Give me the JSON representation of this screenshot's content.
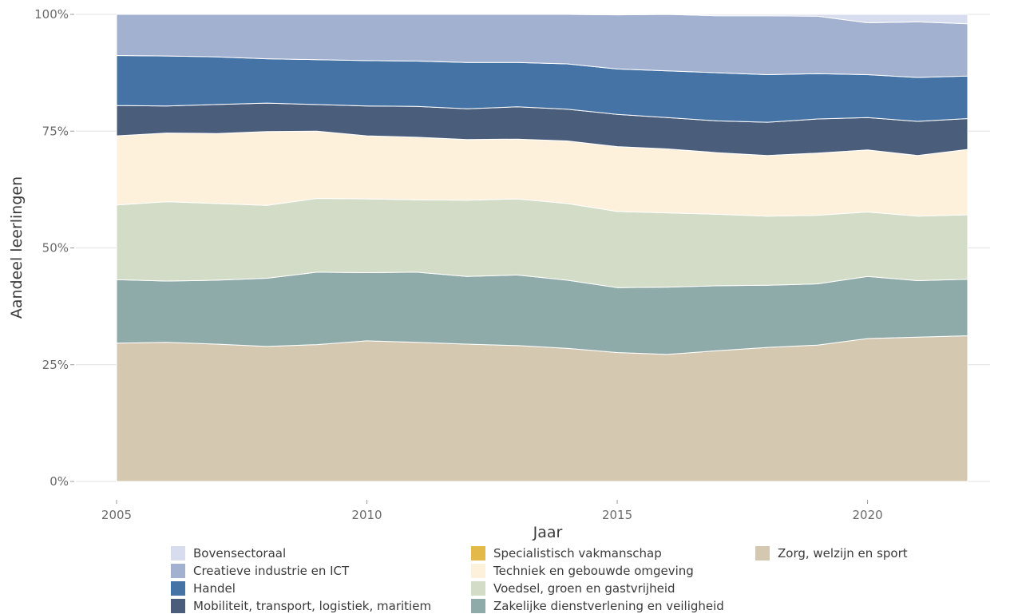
{
  "chart_data": {
    "type": "area",
    "stacked": true,
    "normalized": true,
    "xlabel": "Jaar",
    "ylabel": "Aandeel leerlingen",
    "xlim": [
      2005,
      2022
    ],
    "ylim": [
      0,
      1
    ],
    "x_ticks": [
      2005,
      2010,
      2015,
      2020
    ],
    "y_ticks": [
      0,
      0.25,
      0.5,
      0.75,
      1.0
    ],
    "y_tick_labels": [
      "0%",
      "25%",
      "50%",
      "75%",
      "100%"
    ],
    "grid": true,
    "legend_position": "bottom",
    "legend_columns": [
      [
        "Bovensectoraal",
        "Creatieve industrie en ICT",
        "Handel",
        "Mobiliteit, transport, logistiek, maritiem"
      ],
      [
        "Specialistisch vakmanschap",
        "Techniek en gebouwde omgeving",
        "Voedsel, groen en gastvrijheid",
        "Zakelijke dienstverlening en veiligheid"
      ],
      [
        "Zorg, welzijn en sport"
      ]
    ],
    "x": [
      2005,
      2006,
      2007,
      2008,
      2009,
      2010,
      2011,
      2012,
      2013,
      2014,
      2015,
      2016,
      2017,
      2018,
      2019,
      2020,
      2021,
      2022
    ],
    "series": [
      {
        "name": "Zorg, welzijn en sport",
        "color": "#d4c8b0",
        "values": [
          0.296,
          0.298,
          0.294,
          0.289,
          0.293,
          0.301,
          0.298,
          0.294,
          0.291,
          0.285,
          0.276,
          0.272,
          0.28,
          0.287,
          0.292,
          0.306,
          0.309,
          0.312
        ]
      },
      {
        "name": "Zakelijke dienstverlening en veiligheid",
        "color": "#8faba9",
        "values": [
          0.136,
          0.131,
          0.137,
          0.146,
          0.155,
          0.146,
          0.15,
          0.145,
          0.151,
          0.146,
          0.139,
          0.144,
          0.139,
          0.133,
          0.131,
          0.133,
          0.121,
          0.121
        ]
      },
      {
        "name": "Voedsel, groen en gastvrijheid",
        "color": "#d3dcc6",
        "values": [
          0.16,
          0.17,
          0.164,
          0.156,
          0.158,
          0.158,
          0.155,
          0.163,
          0.163,
          0.164,
          0.163,
          0.159,
          0.153,
          0.148,
          0.147,
          0.138,
          0.138,
          0.138
        ]
      },
      {
        "name": "Techniek en gebouwde omgeving",
        "color": "#fdf1dc",
        "values": [
          0.148,
          0.147,
          0.15,
          0.158,
          0.144,
          0.135,
          0.134,
          0.13,
          0.128,
          0.134,
          0.139,
          0.137,
          0.132,
          0.13,
          0.133,
          0.133,
          0.13,
          0.14
        ]
      },
      {
        "name": "Specialistisch vakmanschap",
        "color": "#e3b94a",
        "values": [
          0,
          0,
          0,
          0,
          0,
          0,
          0,
          0,
          0,
          0,
          0,
          0,
          0,
          0,
          0,
          0,
          0,
          0
        ]
      },
      {
        "name": "Mobiliteit, transport, logistiek, maritiem",
        "color": "#4a5d7b",
        "values": [
          0.065,
          0.058,
          0.062,
          0.061,
          0.057,
          0.064,
          0.066,
          0.066,
          0.069,
          0.068,
          0.069,
          0.067,
          0.068,
          0.071,
          0.073,
          0.069,
          0.073,
          0.066
        ]
      },
      {
        "name": "Handel",
        "color": "#4673a5",
        "values": [
          0.107,
          0.107,
          0.102,
          0.095,
          0.096,
          0.097,
          0.097,
          0.099,
          0.095,
          0.097,
          0.097,
          0.1,
          0.103,
          0.102,
          0.097,
          0.092,
          0.094,
          0.091
        ]
      },
      {
        "name": "Creatieve industrie en ICT",
        "color": "#a3b1d0",
        "values": [
          0.088,
          0.089,
          0.091,
          0.095,
          0.097,
          0.099,
          0.1,
          0.103,
          0.103,
          0.106,
          0.116,
          0.121,
          0.122,
          0.126,
          0.123,
          0.111,
          0.119,
          0.112
        ]
      },
      {
        "name": "Bovensectoraal",
        "color": "#d7dcee",
        "values": [
          0.0,
          0.0,
          0.0,
          0.0,
          0.0,
          0.0,
          0.0,
          0.0,
          0.0,
          0.0,
          0.001,
          0.0,
          0.003,
          0.003,
          0.004,
          0.018,
          0.016,
          0.02
        ]
      }
    ]
  }
}
